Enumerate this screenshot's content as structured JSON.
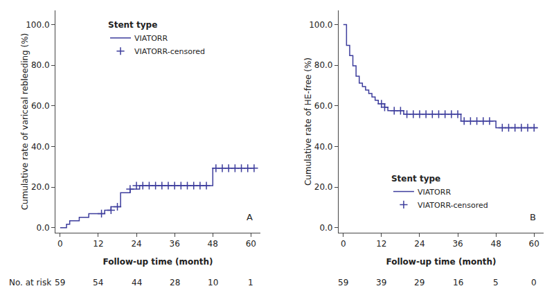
{
  "chart_data": [
    {
      "type": "line",
      "y_label": "Cumulative rate of variceal rebleeding (%)",
      "x_label": "Follow-up time (month)",
      "xlim": [
        -1.5,
        63
      ],
      "ylim": [
        -2.5,
        107
      ],
      "xticks": [
        0,
        12,
        24,
        36,
        48,
        60
      ],
      "yticks": [
        {
          "value": 0.0,
          "label": "0.0"
        },
        {
          "value": 20.0,
          "label": "20.0"
        },
        {
          "value": 40.0,
          "label": "40.0"
        },
        {
          "value": 60.0,
          "label": "60.0"
        },
        {
          "value": 80.0,
          "label": "80.0"
        },
        {
          "value": 100.0,
          "label": "100.0"
        }
      ],
      "grid": false,
      "legend": "upper left",
      "legend_title": "Stent type",
      "annotations": [
        {
          "text": "A"
        }
      ],
      "at_risk": {
        "label": "No. at risk",
        "x": [
          0,
          12,
          24,
          36,
          48,
          60
        ],
        "values": [
          59,
          54,
          44,
          28,
          10,
          1
        ]
      },
      "series": [
        {
          "name": "VIATORR",
          "type": "line",
          "line_style": "step",
          "color": "#3c3c9c",
          "x": [
            0,
            1,
            2,
            3,
            4,
            5,
            6,
            7,
            8,
            9,
            10,
            11,
            12,
            13,
            14,
            15,
            16,
            17,
            18,
            19,
            20,
            21,
            22,
            23,
            24,
            25,
            26,
            27,
            28,
            29,
            30,
            31,
            32,
            33,
            34,
            35,
            36,
            37,
            38,
            39,
            40,
            41,
            42,
            43,
            44,
            45,
            46,
            47,
            48,
            48.01,
            49,
            50,
            51,
            52,
            53,
            54,
            55,
            56,
            57,
            58,
            59,
            60,
            61
          ],
          "values": [
            0.0,
            0.0,
            1.7,
            3.4,
            3.4,
            3.4,
            5.1,
            5.1,
            5.1,
            6.9,
            6.9,
            6.9,
            6.9,
            6.9,
            8.6,
            8.6,
            10.3,
            10.3,
            10.3,
            17.2,
            17.2,
            17.2,
            19.0,
            19.0,
            19.0,
            20.7,
            20.7,
            20.7,
            20.7,
            20.7,
            20.7,
            20.7,
            20.7,
            20.7,
            20.7,
            20.7,
            20.7,
            20.7,
            20.7,
            20.7,
            20.7,
            20.7,
            20.7,
            20.7,
            20.7,
            20.7,
            20.7,
            20.7,
            20.7,
            29.3,
            29.3,
            29.3,
            29.3,
            29.3,
            29.3,
            29.3,
            29.3,
            29.3,
            29.3,
            29.3,
            29.3,
            29.3,
            29.3
          ]
        },
        {
          "name": "VIATORR-censored",
          "type": "scatter",
          "marker": "plus",
          "color": "#3c3c9c",
          "x": [
            13,
            16,
            18,
            22,
            24,
            26,
            28,
            30,
            32,
            34,
            36,
            38,
            40,
            42,
            44,
            46,
            49,
            51,
            53,
            55,
            57,
            59,
            61
          ],
          "values": [
            6.9,
            8.6,
            10.3,
            19.0,
            20.7,
            20.7,
            20.7,
            20.7,
            20.7,
            20.7,
            20.7,
            20.7,
            20.7,
            20.7,
            20.7,
            20.7,
            29.3,
            29.3,
            29.3,
            29.3,
            29.3,
            29.3,
            29.3
          ]
        }
      ]
    },
    {
      "type": "line",
      "y_label": "Cumulative rate of HE-free (%)",
      "x_label": "Follow-up time (month)",
      "xlim": [
        -1.5,
        63
      ],
      "ylim": [
        -2.5,
        107
      ],
      "xticks": [
        0,
        12,
        24,
        36,
        48,
        60
      ],
      "yticks": [
        {
          "value": 0.0,
          "label": "0.0"
        },
        {
          "value": 20.0,
          "label": "20.0"
        },
        {
          "value": 40.0,
          "label": "40.0"
        },
        {
          "value": 60.0,
          "label": "60.0"
        },
        {
          "value": 80.0,
          "label": "80.0"
        },
        {
          "value": 100.0,
          "label": "100.0"
        }
      ],
      "grid": false,
      "legend": "lower left",
      "legend_title": "Stent type",
      "annotations": [
        {
          "text": "B"
        }
      ],
      "at_risk": {
        "x": [
          0,
          12,
          24,
          36,
          48,
          60
        ],
        "values": [
          59,
          39,
          29,
          16,
          5,
          0
        ]
      },
      "series": [
        {
          "name": "VIATORR",
          "type": "line",
          "line_style": "step",
          "color": "#3c3c9c",
          "x": [
            0,
            0.5,
            1,
            2,
            3,
            4,
            5,
            6,
            7,
            8,
            9,
            10,
            11,
            12,
            13,
            14,
            15,
            16,
            17,
            18,
            19,
            20,
            21,
            22,
            23,
            24,
            25,
            26,
            27,
            28,
            29,
            30,
            31,
            32,
            33,
            34,
            35,
            36,
            37,
            38,
            39,
            40,
            41,
            42,
            43,
            44,
            45,
            46,
            47,
            48,
            49,
            50,
            51,
            52,
            53,
            54,
            55,
            56,
            57,
            58,
            59,
            60,
            61
          ],
          "values": [
            100.0,
            100.0,
            89.8,
            84.7,
            79.7,
            74.6,
            71.2,
            69.5,
            67.8,
            66.1,
            64.4,
            62.7,
            61.0,
            61.0,
            59.3,
            57.6,
            57.6,
            57.6,
            57.6,
            57.6,
            55.9,
            55.9,
            55.9,
            55.9,
            55.9,
            55.9,
            55.9,
            55.9,
            55.9,
            55.9,
            55.9,
            55.9,
            55.9,
            55.9,
            55.9,
            55.9,
            55.9,
            55.9,
            52.5,
            52.5,
            52.5,
            52.5,
            52.5,
            52.5,
            52.5,
            52.5,
            52.5,
            52.5,
            52.5,
            49.2,
            49.2,
            49.2,
            49.2,
            49.2,
            49.2,
            49.2,
            49.2,
            49.2,
            49.2,
            49.2,
            49.2,
            49.2,
            49.2
          ]
        },
        {
          "name": "VIATORR-censored",
          "type": "scatter",
          "marker": "plus",
          "color": "#3c3c9c",
          "x": [
            12,
            13,
            16,
            18,
            20,
            22,
            24,
            26,
            28,
            30,
            32,
            34,
            36,
            38,
            40,
            42,
            44,
            46,
            50,
            52,
            54,
            56,
            58,
            60
          ],
          "values": [
            61.0,
            59.3,
            57.6,
            57.6,
            55.9,
            55.9,
            55.9,
            55.9,
            55.9,
            55.9,
            55.9,
            55.9,
            55.9,
            52.5,
            52.5,
            52.5,
            52.5,
            52.5,
            49.2,
            49.2,
            49.2,
            49.2,
            49.2,
            49.2
          ]
        }
      ]
    }
  ]
}
